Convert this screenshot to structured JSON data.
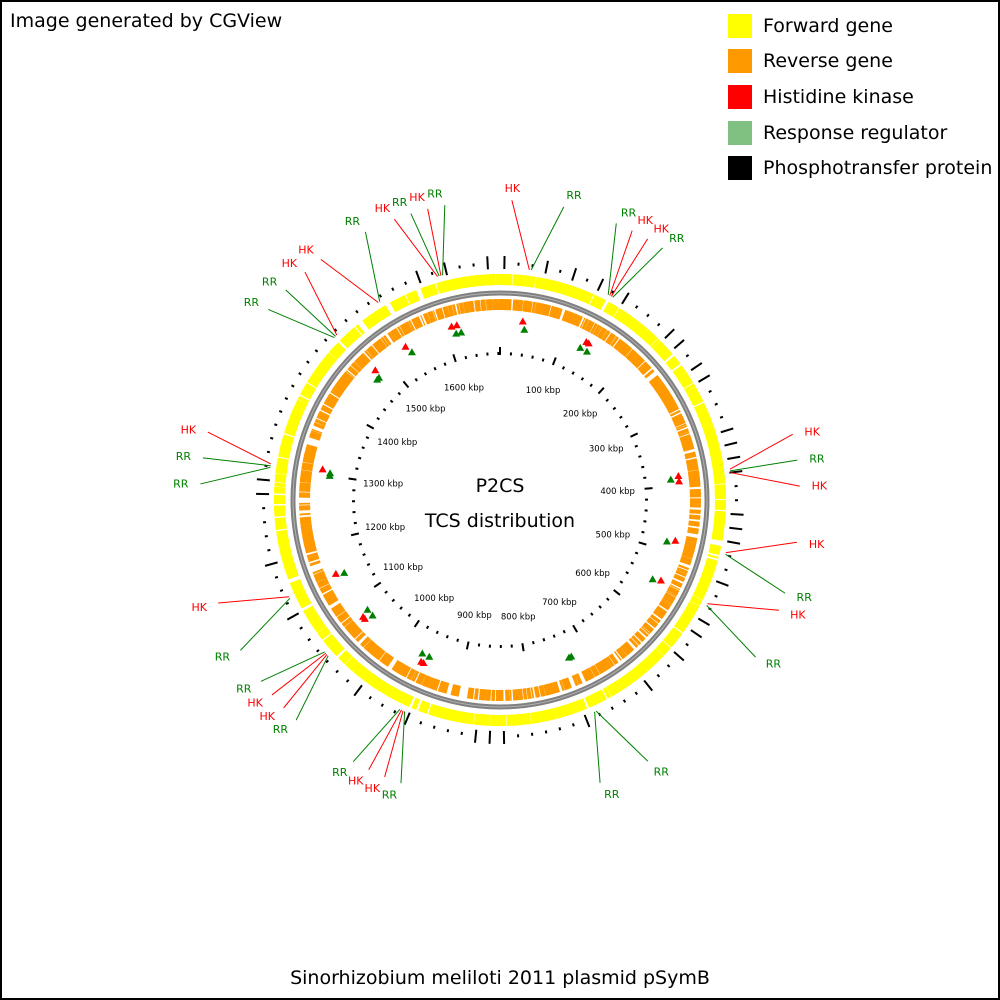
{
  "credit": "Image generated by CGView",
  "legend": [
    {
      "label": "Forward gene",
      "color": "#ffff00"
    },
    {
      "label": "Reverse gene",
      "color": "#ff9900"
    },
    {
      "label": "Histidine kinase",
      "color": "#ff0000"
    },
    {
      "label": "Response regulator",
      "color": "#80c080"
    },
    {
      "label": "Phosphotransfer protein",
      "color": "#000000"
    }
  ],
  "center_title": "P2CS",
  "center_subtitle": "TCS distribution",
  "caption": "Sinorhizobium meliloti 2011 plasmid pSymB",
  "genome_length_kbp": 1683,
  "tick_unit": "kbp",
  "ticks_labeled": [
    100,
    200,
    300,
    400,
    500,
    600,
    700,
    800,
    900,
    1000,
    1100,
    1200,
    1300,
    1400,
    1500,
    1600
  ],
  "colors": {
    "backbone": "#808080",
    "hk_label": "#ff0000",
    "rr_label": "#008000",
    "rr_marker": "#008000",
    "hk_marker": "#ff0000",
    "tcs_tick": "#000000"
  },
  "annotations": [
    {
      "kbp": 34,
      "labels": [
        "HK",
        "RR"
      ]
    },
    {
      "kbp": 130,
      "labels": [
        "RR",
        "HK",
        "HK",
        "RR"
      ]
    },
    {
      "kbp": 385,
      "labels": [
        "HK",
        "RR",
        "HK"
      ]
    },
    {
      "kbp": 482,
      "labels": [
        "HK",
        "RR"
      ]
    },
    {
      "kbp": 545,
      "labels": [
        "HK",
        "RR"
      ]
    },
    {
      "kbp": 727,
      "labels": [
        "RR",
        "RR"
      ]
    },
    {
      "kbp": 955,
      "labels": [
        "RR",
        "HK",
        "HK",
        "RR"
      ]
    },
    {
      "kbp": 1065,
      "labels": [
        "RR",
        "HK",
        "HK",
        "RR"
      ]
    },
    {
      "kbp": 1145,
      "labels": [
        "RR",
        "HK"
      ]
    },
    {
      "kbp": 1300,
      "labels": [
        "RR",
        "RR",
        "HK"
      ]
    },
    {
      "kbp": 1470,
      "labels": [
        "RR",
        "RR",
        "HK"
      ]
    },
    {
      "kbp": 1535,
      "labels": [
        "HK",
        "RR"
      ]
    },
    {
      "kbp": 1610,
      "labels": [
        "HK",
        "RR",
        "HK",
        "RR"
      ]
    }
  ]
}
